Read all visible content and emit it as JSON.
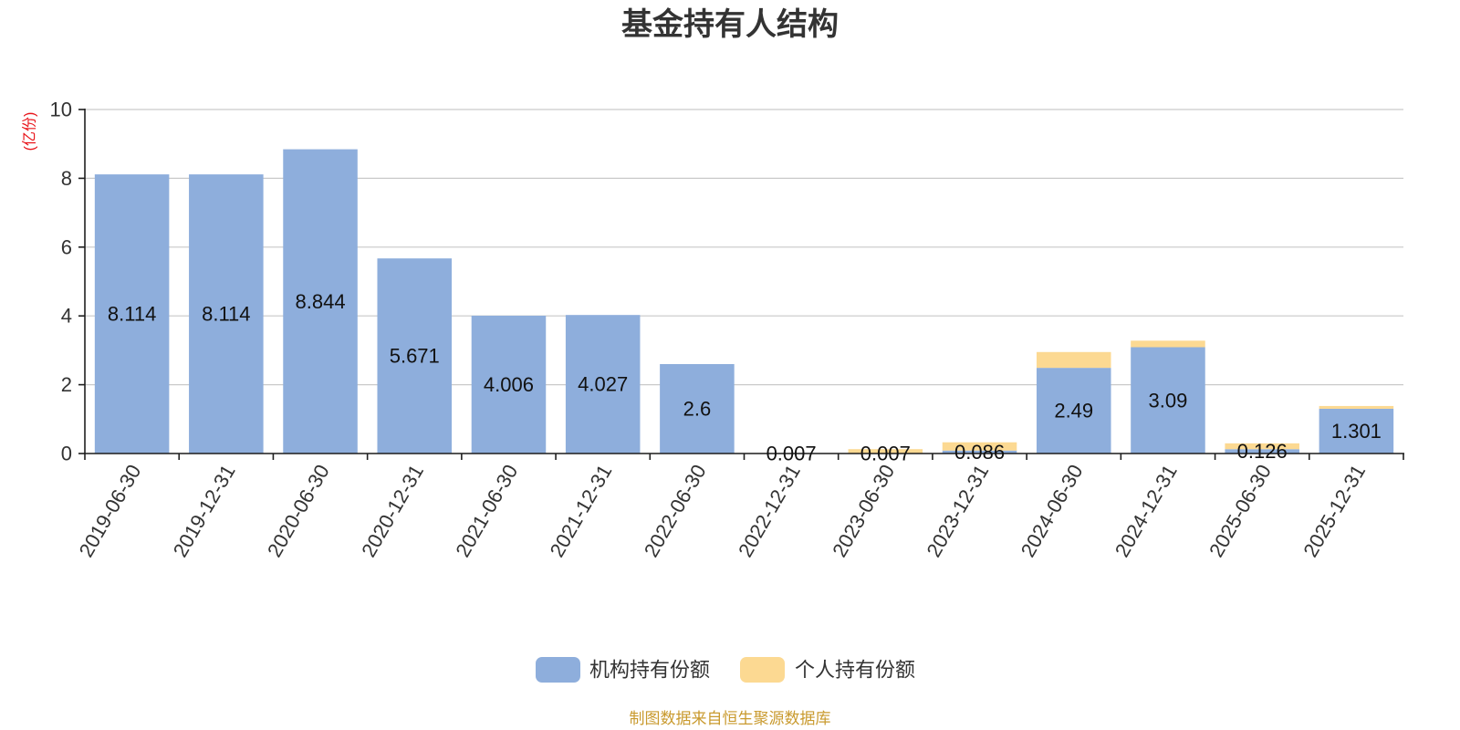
{
  "chart_data": {
    "type": "bar",
    "stacked": true,
    "title": "基金持有人结构",
    "xlabel": "",
    "ylabel": "(亿份)",
    "ylim": [
      0,
      10
    ],
    "yticks": [
      0,
      2,
      4,
      6,
      8,
      10
    ],
    "grid": true,
    "legend_position": "bottom",
    "categories": [
      "2019-06-30",
      "2019-12-31",
      "2020-06-30",
      "2020-12-31",
      "2021-06-30",
      "2021-12-31",
      "2022-06-30",
      "2022-12-31",
      "2023-06-30",
      "2023-12-31",
      "2024-06-30",
      "2024-12-31",
      "2025-06-30",
      "2025-12-31"
    ],
    "series": [
      {
        "name": "机构持有份额",
        "color": "#8eaedc",
        "show_labels": true,
        "values": [
          8.114,
          8.114,
          8.844,
          5.671,
          4.006,
          4.027,
          2.6,
          0.007,
          0.007,
          0.086,
          2.49,
          3.09,
          0.126,
          1.301
        ]
      },
      {
        "name": "个人持有份额",
        "color": "#fcd992",
        "show_labels": false,
        "values": [
          0,
          0,
          0,
          0,
          0,
          0,
          0,
          0,
          0.12,
          0.24,
          0.46,
          0.19,
          0.17,
          0.08
        ]
      }
    ]
  },
  "colors": {
    "title": "#333333",
    "axis_unit": "#e8141a",
    "source_note": "#c99a2e"
  },
  "source_note": "制图数据来自恒生聚源数据库"
}
